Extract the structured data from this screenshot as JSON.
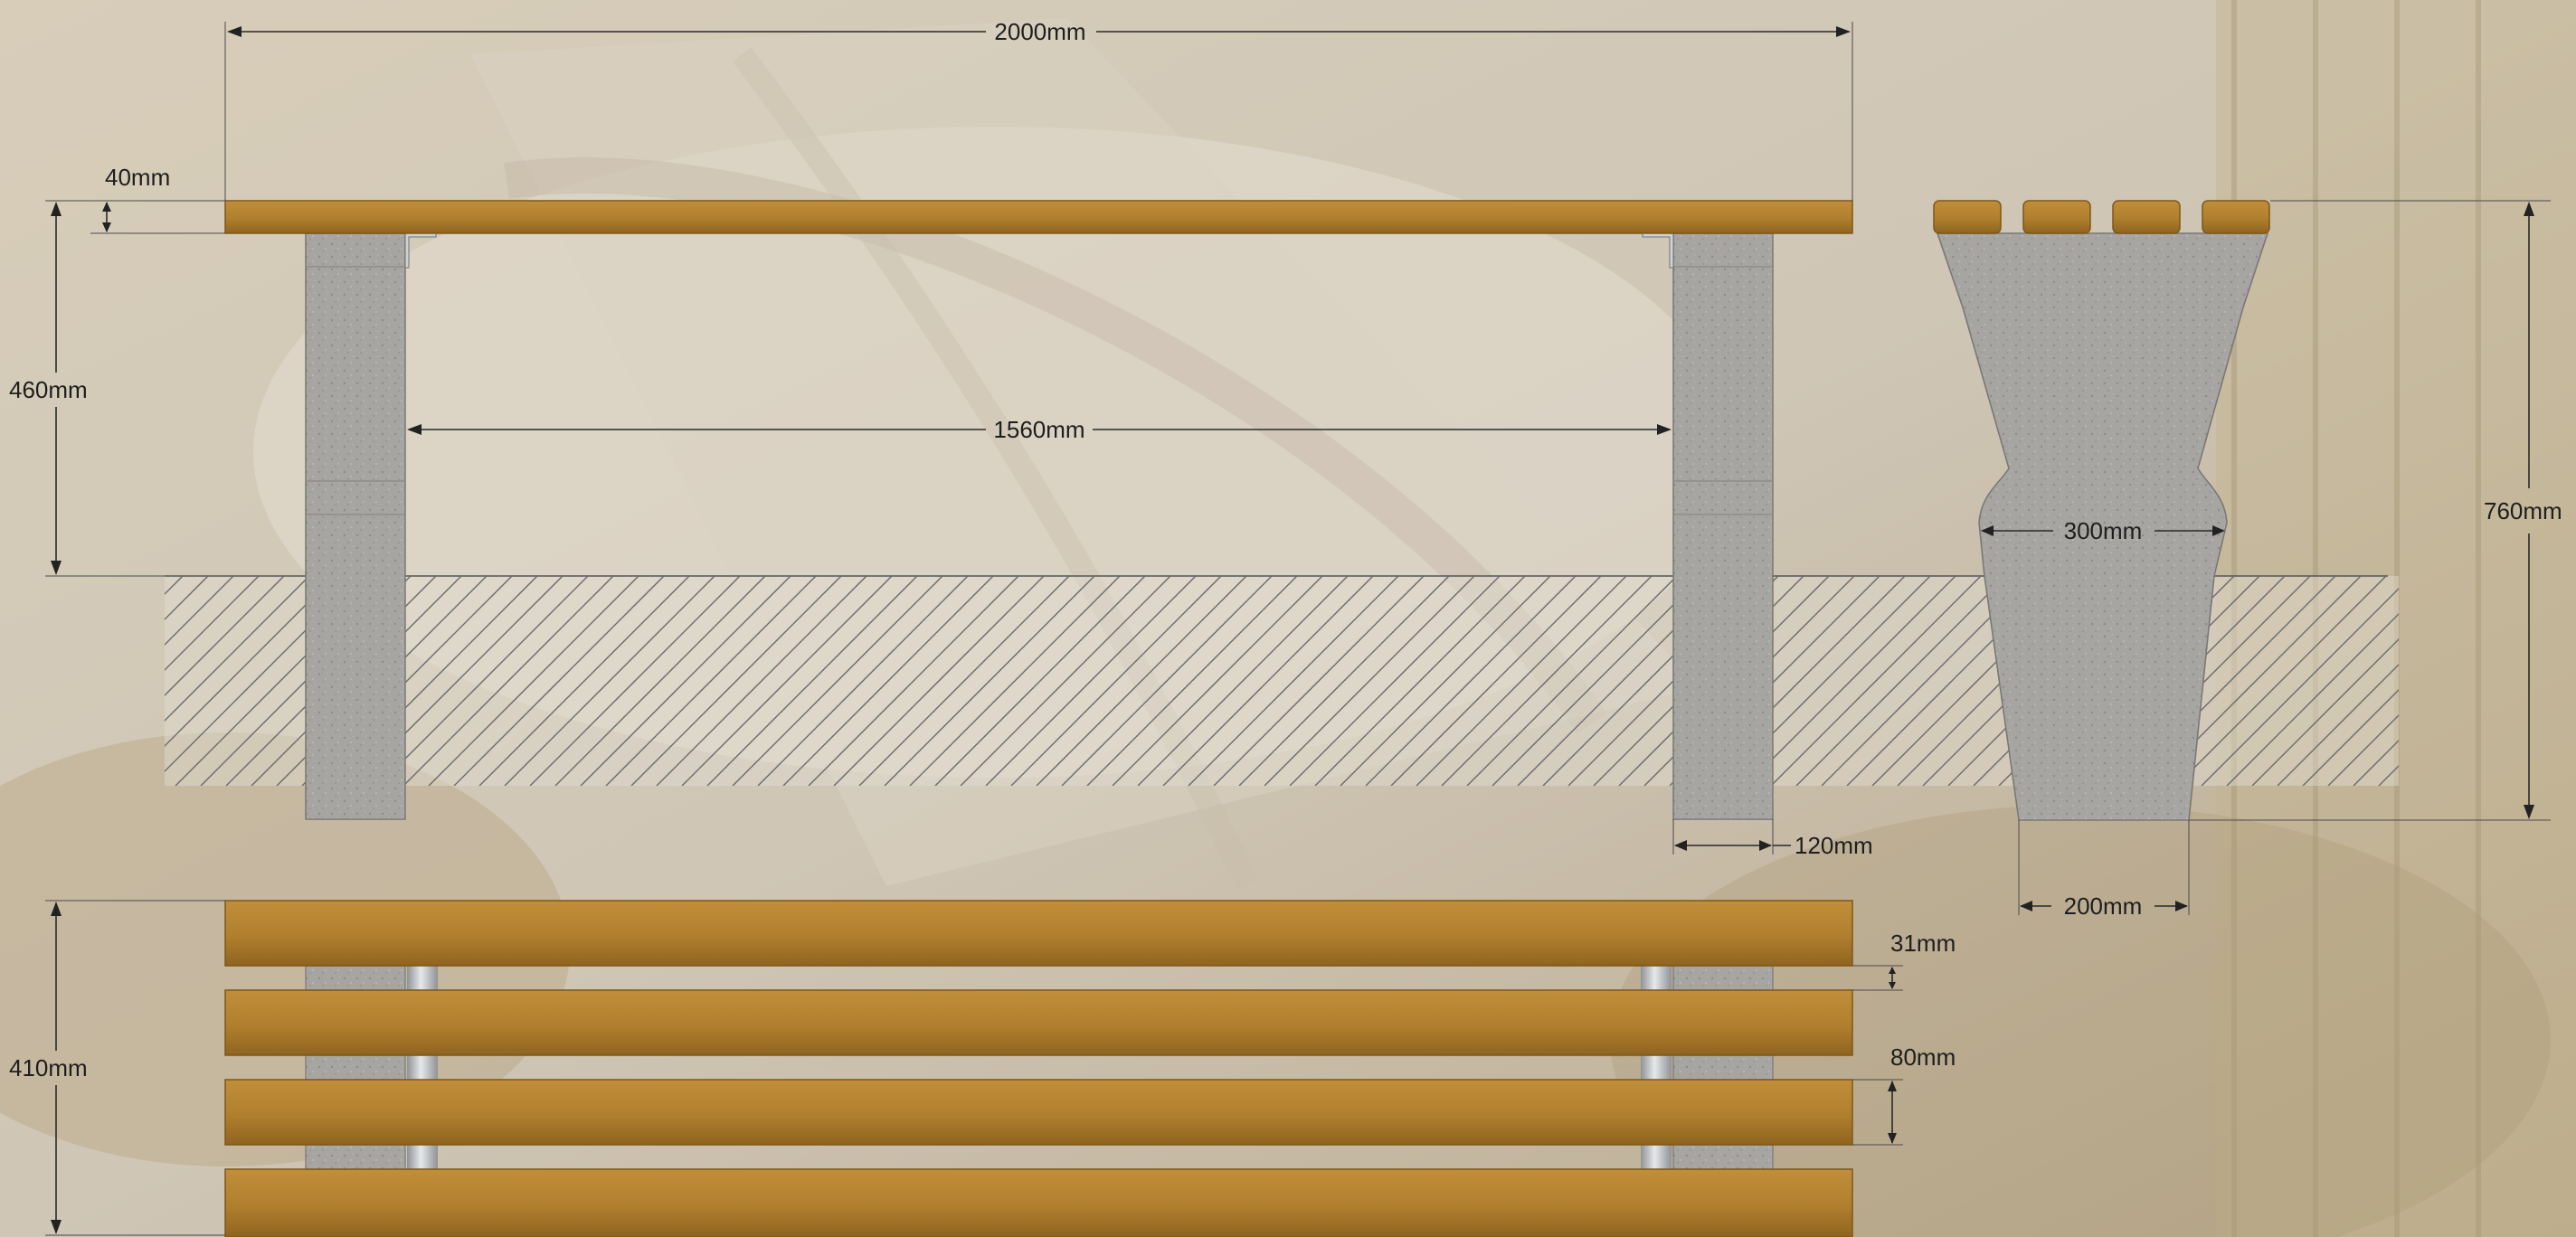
{
  "dimensions": {
    "total_length": "2000mm",
    "top_thickness": "40mm",
    "seat_height": "460mm",
    "inner_span": "1560mm",
    "leg_width": "120mm",
    "end_total_height": "760mm",
    "end_mid_width": "300mm",
    "end_base_width": "200mm",
    "plan_depth": "410mm",
    "slat_gap": "31mm",
    "slat_width": "80mm"
  },
  "colors": {
    "wood": "#b07f2e",
    "wood_dark": "#7e5716",
    "concrete": "#a7a5a2",
    "steel": "#c6c8cb",
    "ground": "#e2ddd3",
    "background": "#c9bfae"
  }
}
